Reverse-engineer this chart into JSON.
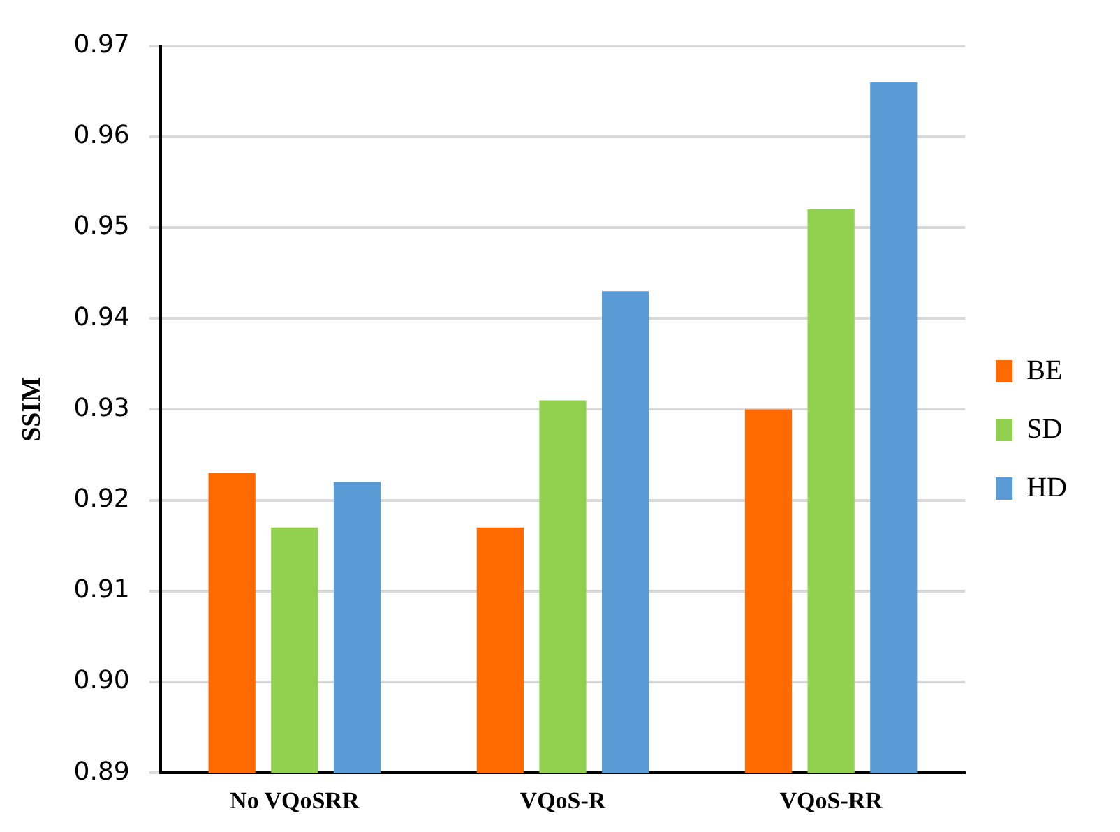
{
  "chart_data": {
    "type": "bar",
    "ylabel": "SSIM",
    "categories": [
      "No VQoSRR",
      "VQoS-R",
      "VQoS-RR"
    ],
    "series": [
      {
        "name": "BE",
        "color": "#ff6a00",
        "values": [
          0.923,
          0.917,
          0.93
        ]
      },
      {
        "name": "SD",
        "color": "#92d050",
        "values": [
          0.917,
          0.931,
          0.952
        ]
      },
      {
        "name": "HD",
        "color": "#5b9bd5",
        "values": [
          0.922,
          0.943,
          0.966
        ]
      }
    ],
    "ylim": [
      0.89,
      0.97
    ],
    "yticks": [
      0.89,
      {
        "value": 0.9,
        "label": "0.90"
      },
      0.91,
      0.92,
      0.93,
      0.94,
      0.95,
      0.96,
      0.97
    ],
    "grid": "y",
    "legend": "right"
  }
}
